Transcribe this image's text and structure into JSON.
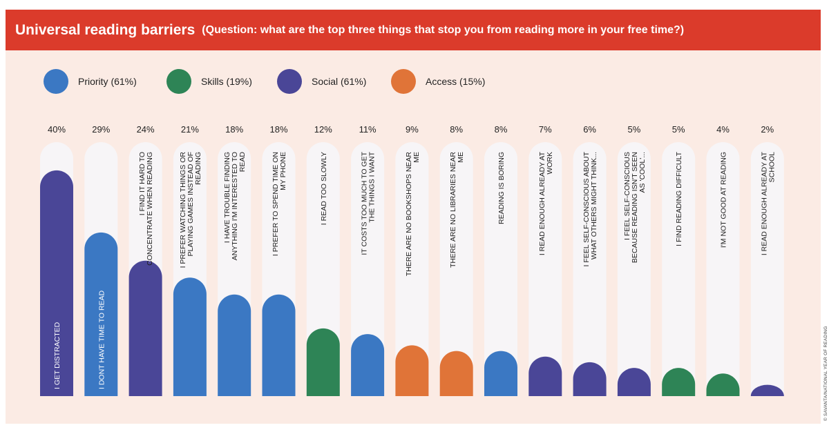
{
  "header": {
    "title": "Universal reading barriers",
    "subtitle": "(Question: what are the top three things that stop you from reading more in your free time?)"
  },
  "legend": [
    {
      "name": "Priority (61%)",
      "color": "#3b78c3"
    },
    {
      "name": "Skills (19%)",
      "color": "#2e8456"
    },
    {
      "name": "Social (61%)",
      "color": "#4a4697"
    },
    {
      "name": "Access (15%)",
      "color": "#e07438"
    }
  ],
  "credit": "© SAVANTA/NATIONAL YEAR OF READING",
  "chart_data": {
    "type": "bar",
    "title": "Universal reading barriers",
    "ylim": [
      0,
      45
    ],
    "grid": false,
    "legend_position": "top-left",
    "bars": [
      {
        "label": "I GET DISTRACTED",
        "value": 40,
        "value_label": "40%",
        "group": "Social"
      },
      {
        "label": "I DONT HAVE TIME TO READ",
        "value": 29,
        "value_label": "29%",
        "group": "Priority"
      },
      {
        "label": "I FIND IT HARD TO CONCENTRATE WHEN READING",
        "value": 24,
        "value_label": "24%",
        "group": "Social"
      },
      {
        "label": "I PREFER WATCHING THINGS OR PLAYING GAMES INSTEAD OF READING",
        "value": 21,
        "value_label": "21%",
        "group": "Priority"
      },
      {
        "label": "I HAVE TROUBLE FINDING ANYTHING I'M INTERESTED TO READ",
        "value": 18,
        "value_label": "18%",
        "group": "Priority"
      },
      {
        "label": "I PREFER TO SPEND TIME ON MY PHONE",
        "value": 18,
        "value_label": "18%",
        "group": "Priority"
      },
      {
        "label": "I READ TOO SLOWLY",
        "value": 12,
        "value_label": "12%",
        "group": "Skills"
      },
      {
        "label": "IT COSTS TOO MUCH TO GET THE THINGS I WANT",
        "value": 11,
        "value_label": "11%",
        "group": "Priority"
      },
      {
        "label": "THERE ARE NO BOOKSHOPS NEAR ME",
        "value": 9,
        "value_label": "9%",
        "group": "Access"
      },
      {
        "label": "THERE ARE NO LIBRARIES NEAR ME",
        "value": 8,
        "value_label": "8%",
        "group": "Access"
      },
      {
        "label": "READING IS BORING",
        "value": 8,
        "value_label": "8%",
        "group": "Priority"
      },
      {
        "label": "I READ ENOUGH ALREADY AT WORK",
        "value": 7,
        "value_label": "7%",
        "group": "Social"
      },
      {
        "label": "I FEEL SELF-CONSCIOUS ABOUT WHAT OTHERS MIGHT THINK...",
        "value": 6,
        "value_label": "6%",
        "group": "Social"
      },
      {
        "label": "I FEEL SELF-CONSCIOUS BECAUSE READING ISN'T SEEN AS 'COOL'...",
        "value": 5,
        "value_label": "5%",
        "group": "Social"
      },
      {
        "label": "I FIND READING DIFFICULT",
        "value": 5,
        "value_label": "5%",
        "group": "Skills"
      },
      {
        "label": "I'M NOT GOOD AT READING",
        "value": 4,
        "value_label": "4%",
        "group": "Skills"
      },
      {
        "label": "I READ ENOUGH ALREADY AT SCHOOL",
        "value": 2,
        "value_label": "2%",
        "group": "Social"
      }
    ]
  }
}
